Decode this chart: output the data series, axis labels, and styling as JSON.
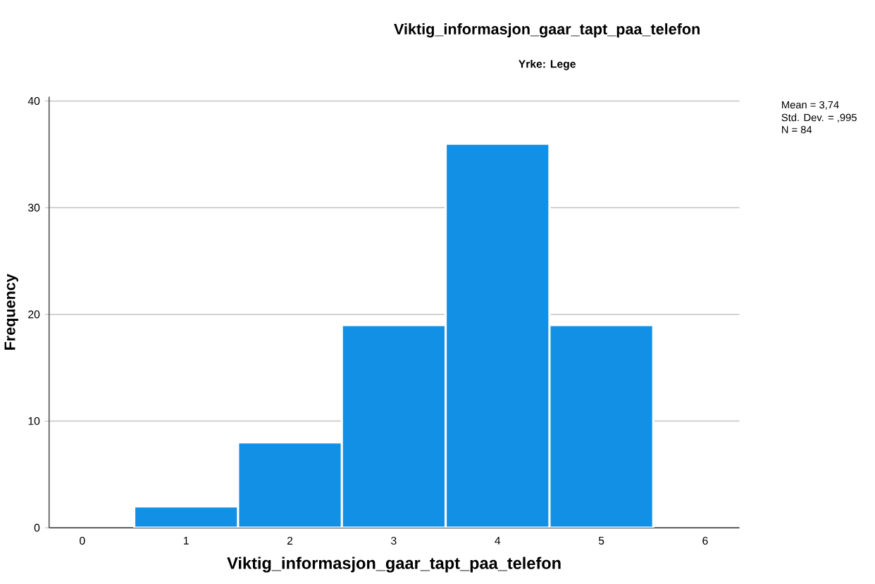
{
  "chart_data": {
    "type": "histogram",
    "title": "Viktig_informasjon_gaar_tapt_paa_telefon",
    "subtitle": "Yrke: Lege",
    "xlabel": "Viktig_informasjon_gaar_tapt_paa_telefon",
    "ylabel": "Frequency",
    "annotations": [
      "Mean = 3,74",
      "Std. Dev. = ,995",
      "N = 84"
    ],
    "bins": [
      0.5,
      1.5,
      2.5,
      3.5,
      4.5,
      5.5
    ],
    "values": [
      2,
      8,
      19,
      36,
      19
    ],
    "color": "#1290e6",
    "xlim": [
      -0.32,
      6.33
    ],
    "ylim": [
      0,
      40.4
    ],
    "xticks": [
      0,
      1,
      2,
      3,
      4,
      5,
      6
    ],
    "yticks": [
      0,
      10,
      20,
      30,
      40
    ],
    "grid": "y"
  }
}
